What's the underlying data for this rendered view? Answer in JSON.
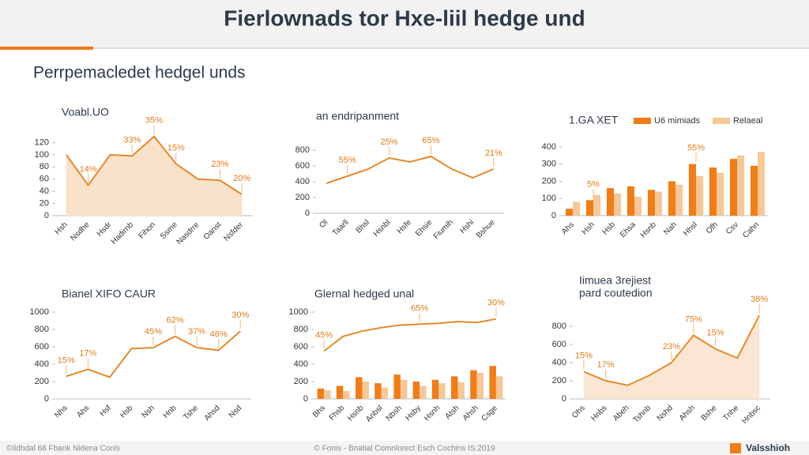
{
  "title": "Fierlownads tor Hxe-liil hedge und",
  "subtitle": "Perrpemacledet hedgel unds",
  "footer_left": "©Ildhdal 68 Fbank Nidena Conls",
  "footer_center": "© Fonis - Bnatial Comnlorect Esch Cochins IS.2019",
  "brand": "Valsshioh",
  "chart_data": [
    {
      "type": "area",
      "title": "Voabl.UO",
      "categories": [
        "Hsh",
        "Nsdhe",
        "Hsdr",
        "Hadirnb",
        "Fihon",
        "Ssme",
        "Nasdrre",
        "Oanst",
        "Nsfder"
      ],
      "series": [
        {
          "color": "#e38a2e",
          "fill": "#f9e2ca",
          "values": [
            100,
            50,
            100,
            98,
            130,
            85,
            60,
            58,
            35
          ]
        }
      ],
      "ylim": [
        0,
        140
      ],
      "yticks": [
        0,
        20,
        40,
        60,
        80,
        100,
        120
      ],
      "annotations": [
        {
          "text": "14%",
          "category": "Nsdhe"
        },
        {
          "text": "33%",
          "category": "Hadirnb"
        },
        {
          "text": "35%",
          "category": "Fihon"
        },
        {
          "text": "15%",
          "category": "Ssme"
        },
        {
          "text": "23%",
          "category": "Oanst"
        },
        {
          "text": "20%",
          "category": "Nsfder"
        }
      ]
    },
    {
      "type": "line",
      "title": "an endripanment",
      "categories": [
        "Ol",
        "Taarll",
        "Bhsl",
        "Hsnbl",
        "Hsfe",
        "Ehsie",
        "Fiumih",
        "Hshi",
        "Bshue"
      ],
      "series": [
        {
          "color": "#e38a2e",
          "values": [
            380,
            470,
            560,
            700,
            650,
            720,
            560,
            450,
            560
          ]
        }
      ],
      "ylim": [
        0,
        1000
      ],
      "yticks": [
        0,
        200,
        400,
        600,
        800
      ],
      "annotations": [
        {
          "text": "55%",
          "category": "Taarll"
        },
        {
          "text": "25%",
          "category": "Hsnbl"
        },
        {
          "text": "65%",
          "category": "Ehsie"
        },
        {
          "text": "21%",
          "category": "Bshue"
        }
      ]
    },
    {
      "type": "bar",
      "title": "1.GA XET",
      "legend": "top-right",
      "categories": [
        "Ahs",
        "Hsh",
        "Hsb",
        "Ehsa",
        "Hsnb",
        "Nah",
        "Hhsl",
        "Ofh",
        "Csv",
        "Cahn"
      ],
      "series": [
        {
          "name": "U6 mimiads",
          "color": "#ee7d1a",
          "values": [
            40,
            90,
            160,
            170,
            150,
            200,
            300,
            280,
            330,
            290
          ]
        },
        {
          "name": "Relaeal",
          "color": "#f6c797",
          "values": [
            80,
            120,
            130,
            110,
            140,
            180,
            230,
            250,
            350,
            370
          ]
        }
      ],
      "ylim": [
        0,
        450
      ],
      "yticks": [
        0,
        100,
        200,
        300,
        400
      ],
      "annotations": [
        {
          "text": "5%",
          "category": "Hsh"
        },
        {
          "text": "55%",
          "category": "Hhsl"
        }
      ]
    },
    {
      "type": "line",
      "title": "Bianel XIFO CAUR",
      "categories": [
        "Nhs",
        "Ahs",
        "Hsf",
        "Hsb",
        "Nsh",
        "Hnb",
        "Tshe",
        "Ahsd",
        "Nsd"
      ],
      "series": [
        {
          "color": "#e38a2e",
          "values": [
            260,
            340,
            250,
            580,
            590,
            720,
            590,
            560,
            780
          ]
        }
      ],
      "ylim": [
        0,
        1000
      ],
      "yticks": [
        0,
        200,
        400,
        600,
        800,
        1000
      ],
      "annotations": [
        {
          "text": "15%",
          "category": "Nhs"
        },
        {
          "text": "17%",
          "category": "Ahs"
        },
        {
          "text": "45%",
          "category": "Nsh"
        },
        {
          "text": "62%",
          "category": "Hnb"
        },
        {
          "text": "37%",
          "category": "Tshe"
        },
        {
          "text": "46%",
          "category": "Ahsd"
        },
        {
          "text": "30%",
          "category": "Nsd"
        }
      ]
    },
    {
      "type": "combo",
      "title": "Glernal hedged unal",
      "categories": [
        "Bhs",
        "Fhsb",
        "Hsnb",
        "Anbsl",
        "Nbsh",
        "Hsby",
        "Hsnh",
        "Atsh",
        "Ahsh",
        "Csge"
      ],
      "series": [
        {
          "kind": "line",
          "color": "#e38a2e",
          "values": [
            550,
            720,
            780,
            820,
            850,
            860,
            870,
            890,
            880,
            920
          ]
        },
        {
          "kind": "bar",
          "color": "#ee7d1a",
          "values": [
            120,
            150,
            250,
            180,
            280,
            200,
            220,
            260,
            330,
            380
          ]
        },
        {
          "kind": "bar",
          "color": "#f6c797",
          "values": [
            100,
            90,
            200,
            130,
            220,
            150,
            180,
            190,
            300,
            260
          ]
        }
      ],
      "ylim": [
        0,
        1000
      ],
      "yticks": [
        0,
        200,
        400,
        600,
        800,
        1000
      ],
      "annotations": [
        {
          "text": "45%",
          "category": "Bhs"
        },
        {
          "text": "65%",
          "category": "Hsby"
        },
        {
          "text": "30%",
          "category": "Csge"
        }
      ]
    },
    {
      "type": "area",
      "title": "Iimuea 3rejiest",
      "subtitle": "pard coutedion",
      "categories": [
        "Ohs",
        "Hnbs",
        "Abeh",
        "Tshnb",
        "Nshd",
        "Ahsh",
        "Bshe",
        "Tnhe",
        "Hnbsc"
      ],
      "series": [
        {
          "color": "#e38a2e",
          "fill": "#fae6d2",
          "values": [
            300,
            200,
            150,
            260,
            400,
            700,
            550,
            450,
            920
          ]
        }
      ],
      "ylim": [
        0,
        1000
      ],
      "yticks": [
        0,
        200,
        400,
        600,
        800
      ],
      "annotations": [
        {
          "text": "15%",
          "category": "Ohs"
        },
        {
          "text": "17%",
          "category": "Hnbs"
        },
        {
          "text": "23%",
          "category": "Nshd"
        },
        {
          "text": "75%",
          "category": "Ahsh"
        },
        {
          "text": "15%",
          "category": "Bshe"
        },
        {
          "text": "38%",
          "category": "Hnbsc"
        }
      ]
    }
  ]
}
